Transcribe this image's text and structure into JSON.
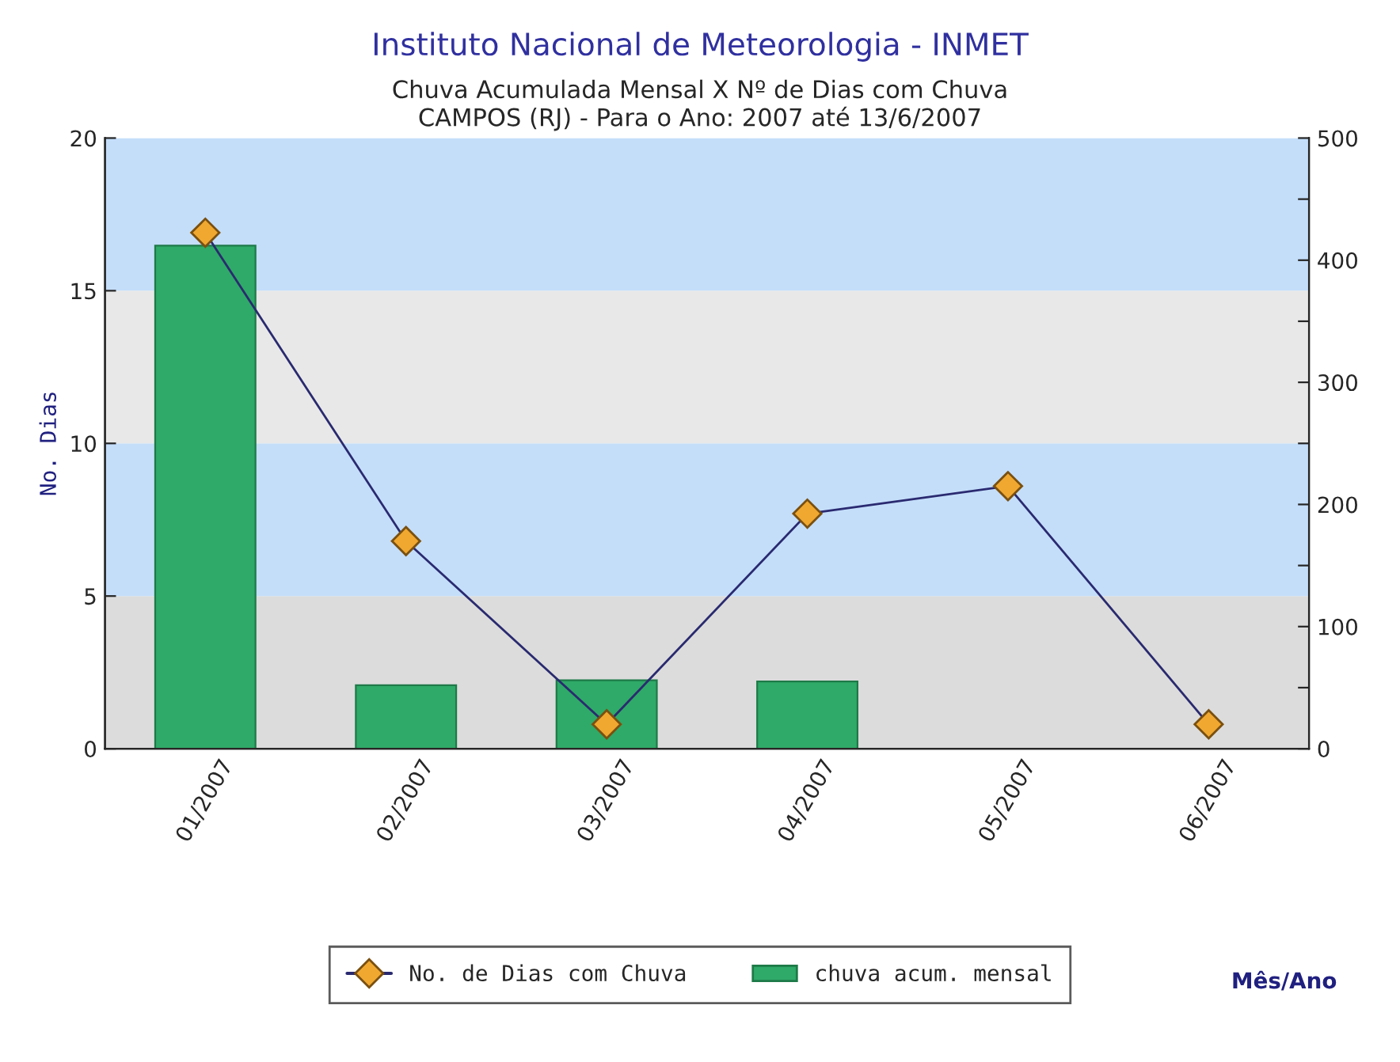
{
  "chart_data": {
    "type": "bar",
    "title": "Instituto Nacional de Meteorologia - INMET",
    "subtitle": "Chuva Acumulada Mensal X Nº de Dias com Chuva\nCAMPOS (RJ) - Para o Ano: 2007 até 13/6/2007",
    "ylabel": "No. Dias",
    "annotations": [
      "Mês/Ano"
    ],
    "categories": [
      "01/2007",
      "02/2007",
      "03/2007",
      "04/2007",
      "05/2007",
      "06/2007"
    ],
    "series": [
      {
        "name": "No. de Dias com Chuva",
        "type": "line",
        "color": "#f0a830",
        "values": [
          16.9,
          6.8,
          0.8,
          7.7,
          8.6,
          0.8
        ]
      },
      {
        "name": "chuva acum. mensal",
        "axis": "y2",
        "color": "#2faa68",
        "values": [
          412,
          52,
          56,
          55,
          null,
          null
        ]
      }
    ],
    "ylim": [
      0,
      20
    ],
    "yticks": [
      0,
      5,
      10,
      15,
      20
    ],
    "y2lim": [
      0,
      500
    ],
    "y2ticks": [
      0,
      {
        "value": 50,
        "label": null
      },
      100,
      {
        "value": 150,
        "label": null
      },
      200,
      {
        "value": 250,
        "label": null
      },
      300,
      {
        "value": 350,
        "label": null
      },
      400,
      {
        "value": 450,
        "label": null
      },
      500
    ],
    "bands": [
      {
        "axis": "y",
        "from": 0,
        "to": 5,
        "color": "#dcdcdc"
      },
      {
        "axis": "y",
        "from": 5,
        "to": 10,
        "color": "#c4defa"
      },
      {
        "axis": "y",
        "from": 10,
        "to": 15,
        "color": "#e8e8e8"
      },
      {
        "axis": "y",
        "from": 15,
        "to": 20,
        "color": "#c4defa"
      }
    ],
    "marker": "diamond",
    "grid": false,
    "legend": "bottom"
  }
}
